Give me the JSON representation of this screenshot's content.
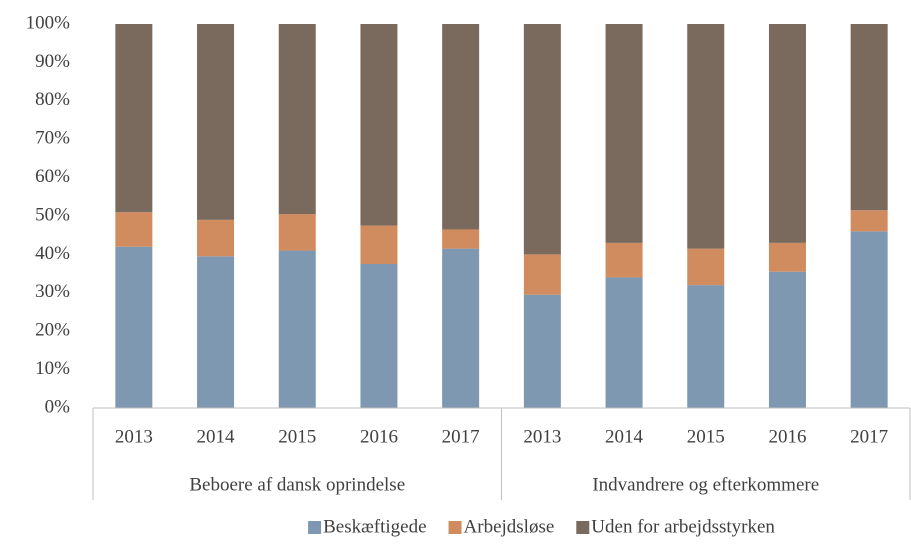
{
  "chart_data": {
    "type": "stacked_bar",
    "groups": [
      {
        "name": "Beboere af dansk oprindelse",
        "categories": [
          "2013",
          "2014",
          "2015",
          "2016",
          "2017"
        ]
      },
      {
        "name": "Indvandrere og efterkommere",
        "categories": [
          "2013",
          "2014",
          "2015",
          "2016",
          "2017"
        ]
      }
    ],
    "series": [
      {
        "name": "Beskæftigede",
        "color": "#7f98b2",
        "values": [
          42,
          39.5,
          41,
          37.5,
          41.5,
          29.5,
          34,
          32,
          35.5,
          46
        ]
      },
      {
        "name": "Arbejdsløse",
        "color": "#d08c5e",
        "values": [
          9,
          9.5,
          9.5,
          10,
          5,
          10.5,
          9,
          9.5,
          7.5,
          5.5
        ]
      },
      {
        "name": "Uden for arbejdsstyrken",
        "color": "#7a695d",
        "values": [
          49,
          51,
          49.5,
          52.5,
          53.5,
          60,
          57,
          58.5,
          57,
          48.5
        ]
      }
    ],
    "ylim": [
      0,
      100
    ],
    "yticks": [
      {
        "value": 0,
        "label": "0%"
      },
      {
        "value": 10,
        "label": "10%"
      },
      {
        "value": 20,
        "label": "20%"
      },
      {
        "value": 30,
        "label": "30%"
      },
      {
        "value": 40,
        "label": "40%"
      },
      {
        "value": 50,
        "label": "50%"
      },
      {
        "value": 60,
        "label": "60%"
      },
      {
        "value": 70,
        "label": "70%"
      },
      {
        "value": 80,
        "label": "80%"
      },
      {
        "value": 90,
        "label": "90%"
      },
      {
        "value": 100,
        "label": "100%"
      }
    ],
    "legend": "bottom"
  }
}
